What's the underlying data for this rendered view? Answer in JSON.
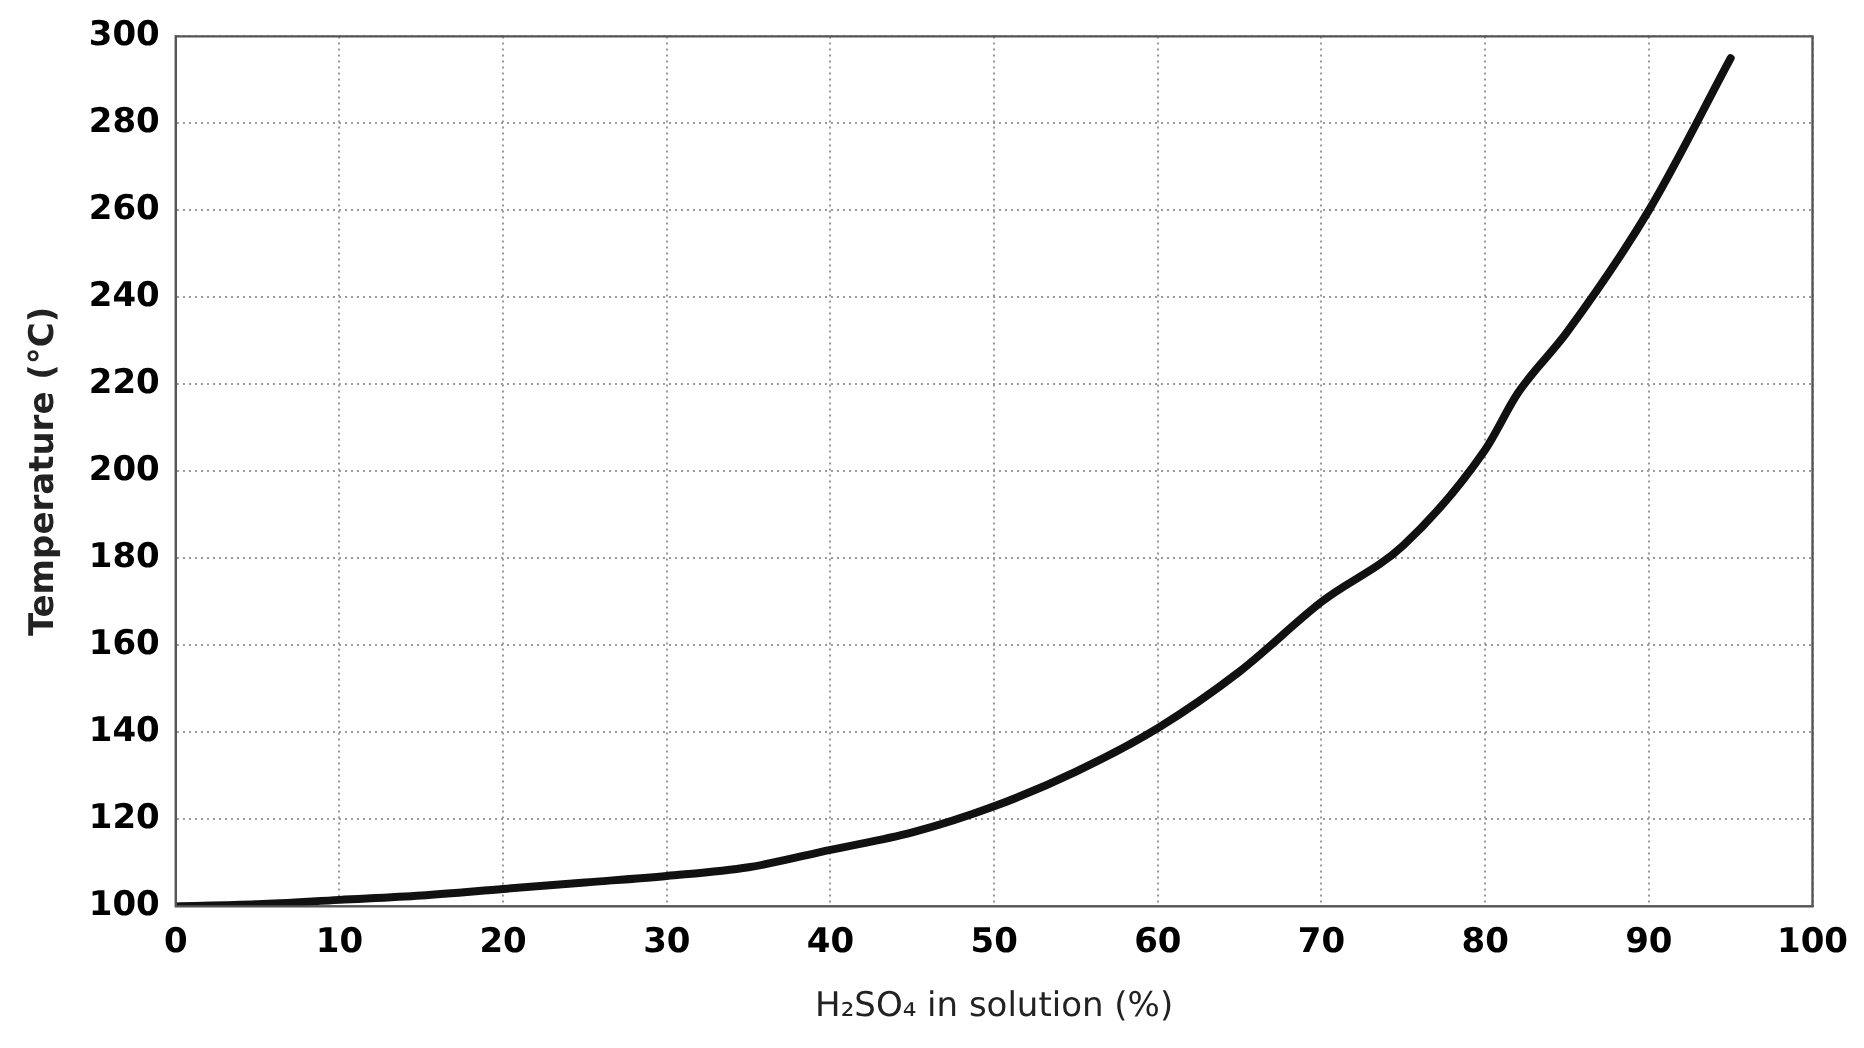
{
  "chart_data": {
    "type": "line",
    "xlabel": "H₂SO₄ in solution (%)",
    "ylabel": "Temperature (°C)",
    "x": [
      0,
      5,
      10,
      15,
      20,
      25,
      30,
      35,
      40,
      45,
      50,
      55,
      60,
      65,
      70,
      75,
      80,
      82,
      85,
      90,
      95
    ],
    "series": [
      {
        "color": "#111111",
        "values": [
          100,
          100.5,
          101.5,
          102.5,
          104,
          105.5,
          107,
          109,
          113,
          117,
          123,
          131,
          141,
          154,
          170,
          183,
          205,
          218,
          232,
          260,
          295
        ]
      }
    ],
    "xlim": [
      0,
      100
    ],
    "xticks": [
      0,
      10,
      20,
      30,
      40,
      50,
      60,
      70,
      80,
      90,
      100
    ],
    "ylim": [
      100,
      300
    ],
    "yticks": [
      100,
      120,
      140,
      160,
      180,
      200,
      220,
      240,
      260,
      280,
      300
    ],
    "grid": true,
    "legend": false,
    "marker": "none",
    "line_style": "solid"
  }
}
